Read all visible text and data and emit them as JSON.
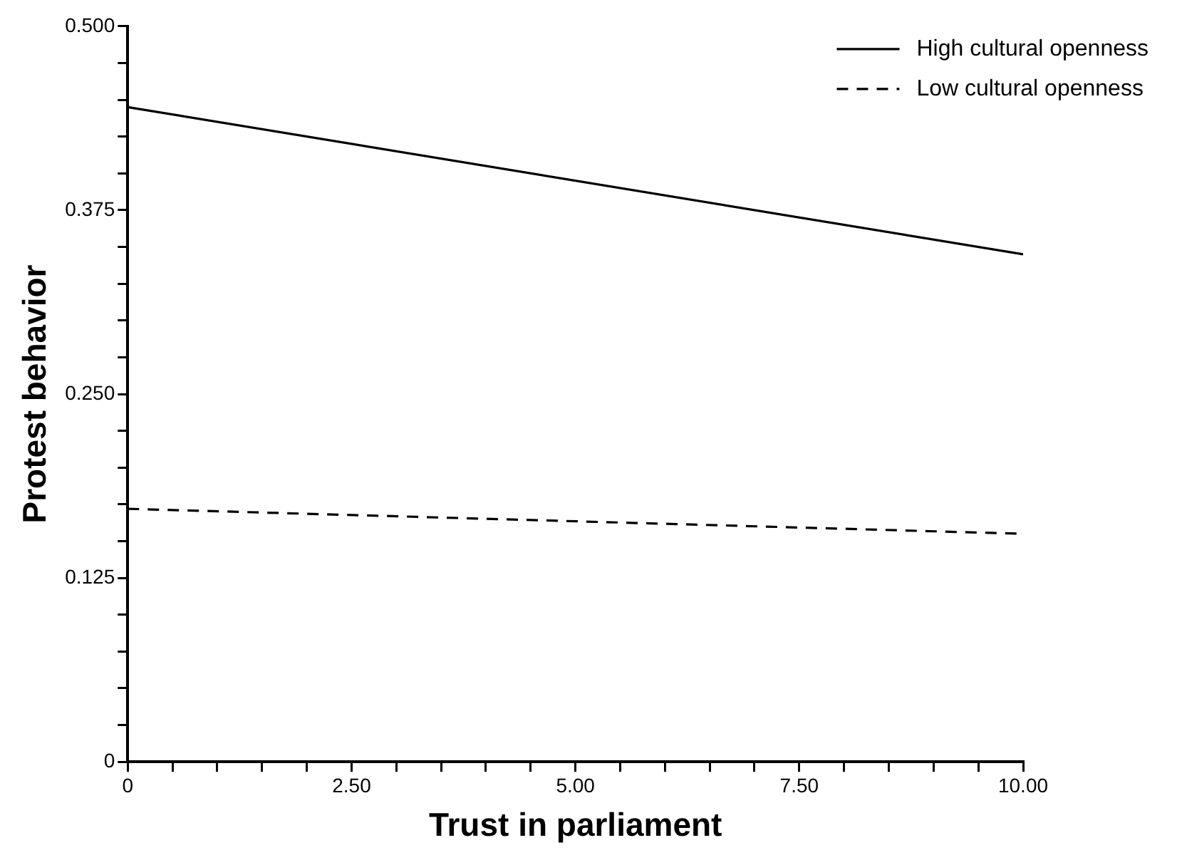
{
  "chart_data": {
    "type": "line",
    "xlabel": "Trust in parliament",
    "ylabel": "Protest behavior",
    "x": [
      0,
      10
    ],
    "series": [
      {
        "name": "High cultural openness",
        "color": "#000000",
        "values": [
          0.445,
          0.345
        ],
        "line_style": "solid"
      },
      {
        "name": "Low cultural openness",
        "color": "#000000",
        "values": [
          0.172,
          0.155
        ],
        "line_style": "dashed"
      }
    ],
    "xlim": [
      0,
      10
    ],
    "xticks": [
      0,
      {
        "value": 0.5,
        "label": null
      },
      {
        "value": 1,
        "label": null
      },
      {
        "value": 1.5,
        "label": null
      },
      {
        "value": 2,
        "label": null
      },
      {
        "value": 2.5,
        "label": "2.50"
      },
      {
        "value": 3,
        "label": null
      },
      {
        "value": 3.5,
        "label": null
      },
      {
        "value": 4,
        "label": null
      },
      {
        "value": 4.5,
        "label": null
      },
      {
        "value": 5,
        "label": "5.00"
      },
      {
        "value": 5.5,
        "label": null
      },
      {
        "value": 6,
        "label": null
      },
      {
        "value": 6.5,
        "label": null
      },
      {
        "value": 7,
        "label": null
      },
      {
        "value": 7.5,
        "label": "7.50"
      },
      {
        "value": 8,
        "label": null
      },
      {
        "value": 8.5,
        "label": null
      },
      {
        "value": 9,
        "label": null
      },
      {
        "value": 9.5,
        "label": null
      },
      {
        "value": 10,
        "label": "10.00"
      }
    ],
    "ylim": [
      0,
      0.5
    ],
    "yticks": [
      0,
      {
        "value": 0.025,
        "label": null
      },
      {
        "value": 0.05,
        "label": null
      },
      {
        "value": 0.075,
        "label": null
      },
      {
        "value": 0.1,
        "label": null
      },
      0.125,
      {
        "value": 0.15,
        "label": null
      },
      {
        "value": 0.175,
        "label": null
      },
      {
        "value": 0.2,
        "label": null
      },
      {
        "value": 0.225,
        "label": null
      },
      {
        "value": 0.25,
        "label": "0.250"
      },
      {
        "value": 0.275,
        "label": null
      },
      {
        "value": 0.3,
        "label": null
      },
      {
        "value": 0.325,
        "label": null
      },
      {
        "value": 0.35,
        "label": null
      },
      0.375,
      {
        "value": 0.4,
        "label": null
      },
      {
        "value": 0.425,
        "label": null
      },
      {
        "value": 0.45,
        "label": null
      },
      {
        "value": 0.475,
        "label": null
      },
      {
        "value": 0.5,
        "label": "0.500"
      }
    ],
    "grid": false,
    "legend": "top right",
    "marker": "none"
  }
}
